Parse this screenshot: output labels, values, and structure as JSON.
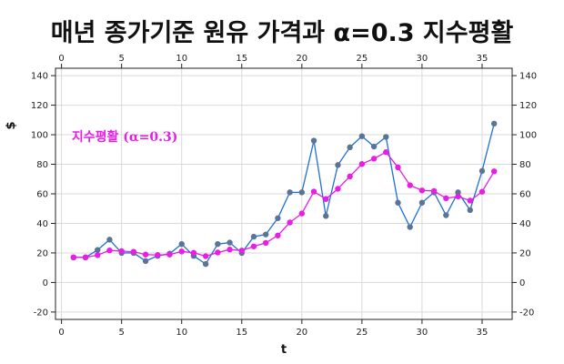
{
  "chart_data": {
    "type": "line",
    "title": "매년 종가기준 원유 가격과 α=0.3 지수평활",
    "xlabel": "t",
    "ylabel": "$",
    "xlim": [
      -0.5,
      37.5
    ],
    "ylim": [
      -25,
      145
    ],
    "x_ticks": [
      0,
      5,
      10,
      15,
      20,
      25,
      30,
      35
    ],
    "y_ticks": [
      -20,
      0,
      20,
      40,
      60,
      80,
      100,
      120,
      140
    ],
    "grid": true,
    "annotation": {
      "text": "지수평활 (α=0.3)",
      "x": 1,
      "y": 97,
      "color": "#e61ee6"
    },
    "x": [
      1,
      2,
      3,
      4,
      5,
      6,
      7,
      8,
      9,
      10,
      11,
      12,
      13,
      14,
      15,
      16,
      17,
      18,
      19,
      20,
      21,
      22,
      23,
      24,
      25,
      26,
      27,
      28,
      29,
      30,
      31,
      32,
      33,
      34,
      35,
      36
    ],
    "series": [
      {
        "color": "#1f6fd6",
        "marker_color": "#5b7494",
        "values": [
          17,
          17,
          22,
          29,
          20,
          20,
          14.5,
          18,
          19.5,
          26,
          18,
          12.5,
          26,
          27,
          20,
          31,
          32.5,
          43.5,
          61,
          61,
          96,
          45,
          79.5,
          91.5,
          99,
          92,
          98.5,
          54,
          37.5,
          54,
          61,
          45.5,
          61,
          49,
          75.5,
          107.5
        ]
      },
      {
        "color": "#e61ee6",
        "marker_color": "#e61ee6",
        "values": [
          17,
          17,
          18.5,
          21.7,
          21.2,
          20.8,
          18.9,
          18.6,
          18.9,
          21,
          20.1,
          17.8,
          20.3,
          22.3,
          21.6,
          24.4,
          26.8,
          31.8,
          40.6,
          46.7,
          61.5,
          56.5,
          63.4,
          71.8,
          80.2,
          83.8,
          88.2,
          77.9,
          65.8,
          62.3,
          61.9,
          57,
          58.2,
          55.4,
          61.4,
          75.2
        ]
      }
    ]
  }
}
